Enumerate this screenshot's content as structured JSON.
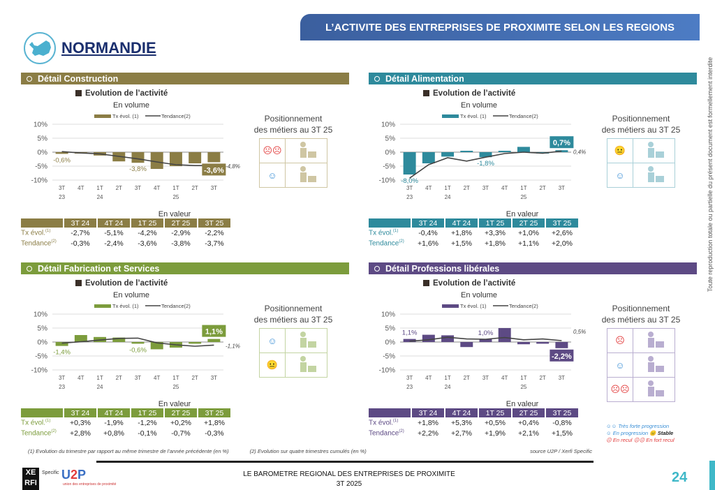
{
  "header": {
    "title": "L’ACTIVITE DES ENTREPRISES DE PROXIMITE SELON LES REGIONS",
    "region": "NORMANDIE"
  },
  "common": {
    "chart_title": "Evolution de l’activité",
    "chart_subtitle": "En volume",
    "legend_bar": "Tx évol. (1)",
    "legend_line": "Tendance(2)",
    "pos_title_1": "Positionnement",
    "pos_title_2": "des métiers au 3T 25",
    "table_caption": "En valeur",
    "row1": "Tx évol.",
    "row2": "Tendance",
    "sup1": "(1)",
    "sup2": "(2)",
    "table_cols": [
      "3T 24",
      "4T 24",
      "1T 25",
      "2T 25",
      "3T 25"
    ]
  },
  "panels": [
    {
      "title": "Détail Construction",
      "color": "#8b7d45",
      "border": "#cfc6a3",
      "positions": [
        {
          "mood": "☹☹",
          "mood_color": "#e23c3c",
          "icon": "construction-worker-bricks-icon"
        },
        {
          "mood": "☺",
          "mood_color": "#3a8fd6",
          "icon": "worker-shovel-icon"
        }
      ],
      "tx": [
        "-2,7%",
        "-5,1%",
        "-4,2%",
        "-2,9%",
        "-2,2%"
      ],
      "tend": [
        "-0,3%",
        "-2,4%",
        "-3,6%",
        "-3,8%",
        "-3,7%"
      ]
    },
    {
      "title": "Détail Alimentation",
      "color": "#2e8a9c",
      "border": "#a9d0d8",
      "positions": [
        {
          "mood": "😐",
          "mood_color": "#333333",
          "icon": "shop-icon"
        },
        {
          "mood": "☺",
          "mood_color": "#3a8fd6",
          "icon": "restaurant-icon"
        }
      ],
      "tx": [
        "-0,4%",
        "+1,8%",
        "+3,3%",
        "+1,0%",
        "+2,6%"
      ],
      "tend": [
        "+1,6%",
        "+1,5%",
        "+1,8%",
        "+1,1%",
        "+2,0%"
      ]
    },
    {
      "title": "Détail Fabrication et Services",
      "color": "#7c9c3c",
      "border": "#c3d4a2",
      "positions": [
        {
          "mood": "☺",
          "mood_color": "#3a8fd6",
          "icon": "gear-wrench-icon"
        },
        {
          "mood": "😐",
          "mood_color": "#333333",
          "icon": "hand-leaf-icon"
        }
      ],
      "tx": [
        "+0,3%",
        "-1,9%",
        "-1,2%",
        "+0,2%",
        "+1,8%"
      ],
      "tend": [
        "+2,8%",
        "+0,8%",
        "-0,1%",
        "-0,7%",
        "-0,3%"
      ]
    },
    {
      "title": "Détail Professions libérales",
      "color": "#5d4a84",
      "border": "#b9aed0",
      "positions": [
        {
          "mood": "☹",
          "mood_color": "#e23c3c",
          "icon": "medical-cross-icon"
        },
        {
          "mood": "☺",
          "mood_color": "#3a8fd6",
          "icon": "scales-icon"
        },
        {
          "mood": "☹☹",
          "mood_color": "#e23c3c",
          "icon": "family-house-icon"
        }
      ],
      "tx": [
        "+1,8%",
        "+5,3%",
        "+0,5%",
        "+0,4%",
        "-0,8%"
      ],
      "tend": [
        "+2,2%",
        "+2,7%",
        "+1,9%",
        "+2,1%",
        "+1,5%"
      ]
    }
  ],
  "chart_data": [
    {
      "type": "bar",
      "title": "Evolution de l’activité",
      "subtitle": "En volume",
      "categories": [
        "3T 23",
        "4T 23",
        "1T 24",
        "2T 24",
        "3T 24",
        "4T 24",
        "1T 25",
        "2T 25",
        "3T 25"
      ],
      "x_ticks_top": [
        "3T",
        "4T",
        "1T",
        "2T",
        "3T",
        "4T",
        "1T",
        "2T",
        "3T"
      ],
      "x_ticks_bottom": [
        "23",
        "",
        "24",
        "",
        "",
        "",
        "25",
        "",
        ""
      ],
      "yticks": [
        "10%",
        "5%",
        "0%",
        "-5%",
        "-10%"
      ],
      "ylim": [
        -10,
        10
      ],
      "grid": true,
      "legend": "top",
      "series": [
        {
          "name": "Tx évol. (1)",
          "type": "bar",
          "values": [
            -0.6,
            -0.5,
            -1.2,
            -3.3,
            -3.8,
            -6.0,
            -5.0,
            -4.0,
            -3.6
          ]
        },
        {
          "name": "Tendance(2)",
          "type": "line",
          "values": [
            0.2,
            -0.3,
            -0.6,
            -1.5,
            -2.4,
            -3.5,
            -4.5,
            -4.8,
            -4.8
          ]
        }
      ],
      "labels": [
        {
          "index": 0,
          "text": "-0,6%",
          "pos": "below"
        },
        {
          "index": 4,
          "text": "-3,8%",
          "pos": "below"
        },
        {
          "index": 8,
          "text": "-3,6%",
          "pos": "highlight-below"
        },
        {
          "index": 8,
          "text": "-4,8%",
          "pos": "line-right"
        }
      ]
    },
    {
      "type": "bar",
      "title": "Evolution de l’activité",
      "subtitle": "En volume",
      "categories": [
        "3T 23",
        "4T 23",
        "1T 24",
        "2T 24",
        "3T 24",
        "4T 24",
        "1T 25",
        "2T 25",
        "3T 25"
      ],
      "x_ticks_top": [
        "3T",
        "4T",
        "1T",
        "2T",
        "3T",
        "4T",
        "1T",
        "2T",
        "3T"
      ],
      "x_ticks_bottom": [
        "23",
        "",
        "24",
        "",
        "",
        "",
        "25",
        "",
        ""
      ],
      "yticks": [
        "10%",
        "5%",
        "0%",
        "-5%",
        "-10%"
      ],
      "ylim": [
        -10,
        10
      ],
      "grid": true,
      "legend": "top",
      "series": [
        {
          "name": "Tx évol. (1)",
          "type": "bar",
          "values": [
            -8.0,
            -4.0,
            -1.6,
            0.5,
            -1.8,
            0.5,
            1.9,
            -0.5,
            0.7
          ]
        },
        {
          "name": "Tendance(2)",
          "type": "line",
          "values": [
            -9.3,
            -4.5,
            -2.0,
            -3.2,
            -1.8,
            -0.5,
            0.0,
            -0.4,
            0.4
          ]
        }
      ],
      "labels": [
        {
          "index": 0,
          "text": "-8,0%",
          "pos": "below"
        },
        {
          "index": 4,
          "text": "-1,8%",
          "pos": "below"
        },
        {
          "index": 8,
          "text": "0,7%",
          "pos": "highlight-above"
        },
        {
          "index": 8,
          "text": "0,4%",
          "pos": "line-right"
        }
      ]
    },
    {
      "type": "bar",
      "title": "Evolution de l’activité",
      "subtitle": "En volume",
      "categories": [
        "3T 23",
        "4T 23",
        "1T 24",
        "2T 24",
        "3T 24",
        "4T 24",
        "1T 25",
        "2T 25",
        "3T 25"
      ],
      "x_ticks_top": [
        "3T",
        "4T",
        "1T",
        "2T",
        "3T",
        "4T",
        "1T",
        "2T",
        "3T"
      ],
      "x_ticks_bottom": [
        "23",
        "",
        "24",
        "",
        "",
        "",
        "25",
        "",
        ""
      ],
      "yticks": [
        "10%",
        "5%",
        "0%",
        "-5%",
        "-10%"
      ],
      "ylim": [
        -10,
        10
      ],
      "grid": true,
      "legend": "top",
      "series": [
        {
          "name": "Tx évol. (1)",
          "type": "bar",
          "values": [
            -1.4,
            2.5,
            1.8,
            1.6,
            -0.6,
            -2.6,
            -2.0,
            -0.6,
            1.1
          ]
        },
        {
          "name": "Tendance(2)",
          "type": "line",
          "values": [
            -0.4,
            0.1,
            0.7,
            1.3,
            1.4,
            -0.3,
            -1.0,
            -1.5,
            -1.1
          ]
        }
      ],
      "labels": [
        {
          "index": 0,
          "text": "-1,4%",
          "pos": "below"
        },
        {
          "index": 4,
          "text": "-0,6%",
          "pos": "below"
        },
        {
          "index": 8,
          "text": "1,1%",
          "pos": "highlight-above"
        },
        {
          "index": 8,
          "text": "-1,1%",
          "pos": "line-right"
        }
      ]
    },
    {
      "type": "bar",
      "title": "Evolution de l’activité",
      "subtitle": "En volume",
      "categories": [
        "3T 23",
        "4T 23",
        "1T 24",
        "2T 24",
        "3T 24",
        "4T 24",
        "1T 25",
        "2T 25",
        "3T 25"
      ],
      "x_ticks_top": [
        "3T",
        "4T",
        "1T",
        "2T",
        "3T",
        "4T",
        "1T",
        "2T",
        "3T"
      ],
      "x_ticks_bottom": [
        "23",
        "",
        "24",
        "",
        "",
        "",
        "25",
        "",
        ""
      ],
      "yticks": [
        "10%",
        "5%",
        "0%",
        "-5%",
        "-10%"
      ],
      "ylim": [
        -10,
        10
      ],
      "grid": true,
      "legend": "top",
      "series": [
        {
          "name": "Tx évol. (1)",
          "type": "bar",
          "values": [
            1.1,
            2.6,
            2.4,
            -1.8,
            1.0,
            5.0,
            -0.8,
            -0.6,
            -2.2
          ]
        },
        {
          "name": "Tendance(2)",
          "type": "line",
          "values": [
            0.3,
            0.8,
            1.7,
            1.1,
            1.0,
            1.6,
            0.8,
            1.1,
            0.5
          ]
        }
      ],
      "labels": [
        {
          "index": 0,
          "text": "1,1%",
          "pos": "above"
        },
        {
          "index": 4,
          "text": "1,0%",
          "pos": "above"
        },
        {
          "index": 8,
          "text": "-2,2%",
          "pos": "highlight-below"
        },
        {
          "index": 8,
          "text": "0,5%",
          "pos": "line-right-above"
        }
      ]
    }
  ],
  "legend_moods": {
    "l1": "☺☺ Très forte progression",
    "l2": "☺ En progression",
    "l3": "😐 Stable",
    "l4": "☹ En recul",
    "l5": "☹☹ En fort recul"
  },
  "notes": {
    "n1": "(1) Evolution du trimestre par rapport au même trimestre de l’année précédente (en %)",
    "n2": "(2) Evolution sur quatre trimestres cumulés (en %)",
    "source": "source U2P / Xerfi Specific"
  },
  "footer": {
    "line1": "LE BAROMETRE REGIONAL DES ENTREPRISES DE PROXIMITE",
    "line2": "3T 2025",
    "page": "24",
    "xerfi": "XERFI",
    "specific": "Specific",
    "u2p": "U2P",
    "u2p_sub": "union des entreprises de proximité"
  },
  "side_text": "Toute reproduction totale ou partielle du présent document est formellement interdite"
}
